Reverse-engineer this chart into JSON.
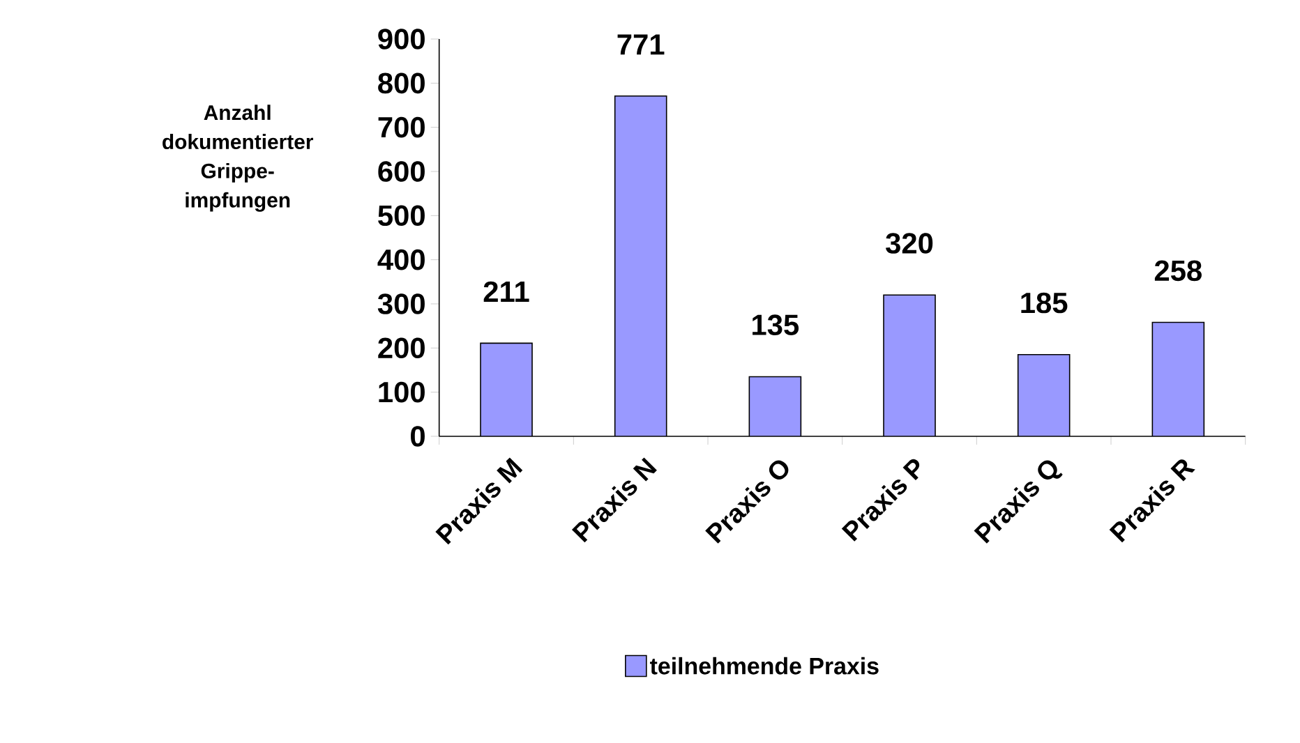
{
  "chart_data": {
    "type": "bar",
    "ylabel": "Anzahl dokumentierter Grippe-impfungen",
    "categories": [
      "Praxis M",
      "Praxis N",
      "Praxis O",
      "Praxis P",
      "Praxis Q",
      "Praxis R"
    ],
    "series": [
      {
        "name": "teilnehmende Praxis",
        "color": "#9999ff",
        "values": [
          211,
          771,
          135,
          320,
          185,
          258
        ]
      }
    ],
    "ylim": [
      0,
      900
    ],
    "yticks": [
      0,
      100,
      200,
      300,
      400,
      500,
      600,
      700,
      800,
      900
    ],
    "data_labels": true,
    "legend": "bottom",
    "grid": false
  }
}
